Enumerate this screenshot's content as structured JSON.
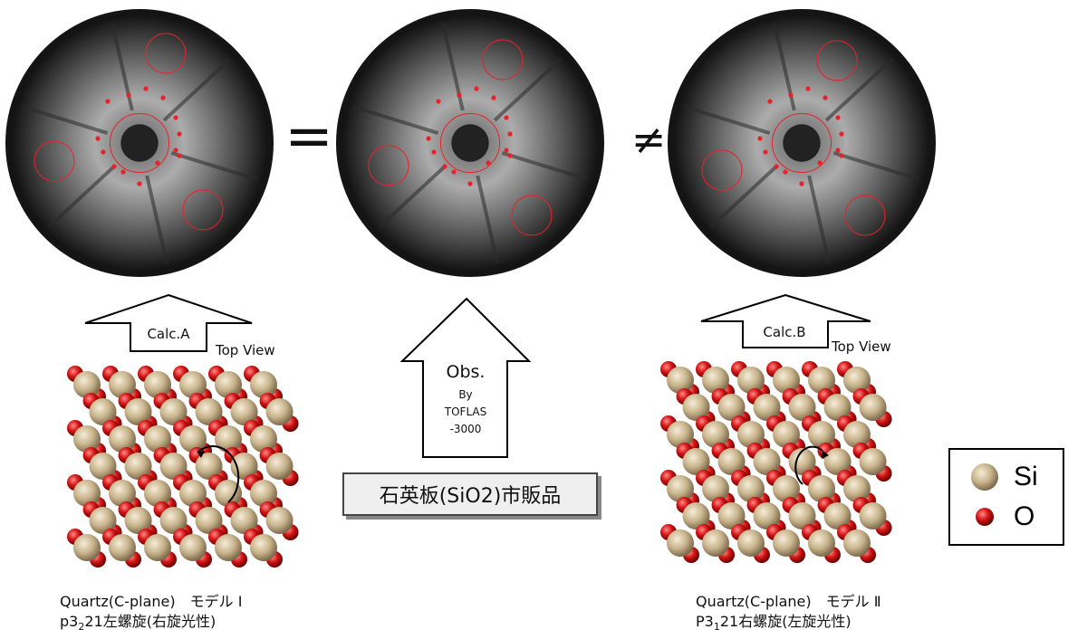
{
  "relations": {
    "equal": "=",
    "not_equal": "≠"
  },
  "arrows": {
    "left": {
      "label": "Calc.A"
    },
    "center": {
      "label_main": "Obs.",
      "label_by": "By",
      "label_line2": "TOFLAS",
      "label_line3": "-3000"
    },
    "right": {
      "label": "Calc.B"
    }
  },
  "view_labels": {
    "left": "Top View",
    "right": "Top View"
  },
  "sample_label": "石英板(SiO2)市販品",
  "models": {
    "left": {
      "line1": "Quartz(C-plane)　モデル Ⅰ",
      "line2_prefix": "p3",
      "line2_sub": "2",
      "line2_suffix": "21左螺旋(右旋光性)"
    },
    "right": {
      "line1": "Quartz(C-plane)　モデル Ⅱ",
      "line2_prefix": "P3",
      "line2_sub": "1",
      "line2_suffix": "21右螺旋(左旋光性)"
    }
  },
  "legend": {
    "items": [
      {
        "label": "Si",
        "color": "#c8b48c"
      },
      {
        "label": "O",
        "color": "#cc1111"
      }
    ]
  },
  "colors": {
    "marker": "#e8222a",
    "pattern_bg": "#141414",
    "si": "#c8b48c",
    "o": "#cc1111"
  }
}
